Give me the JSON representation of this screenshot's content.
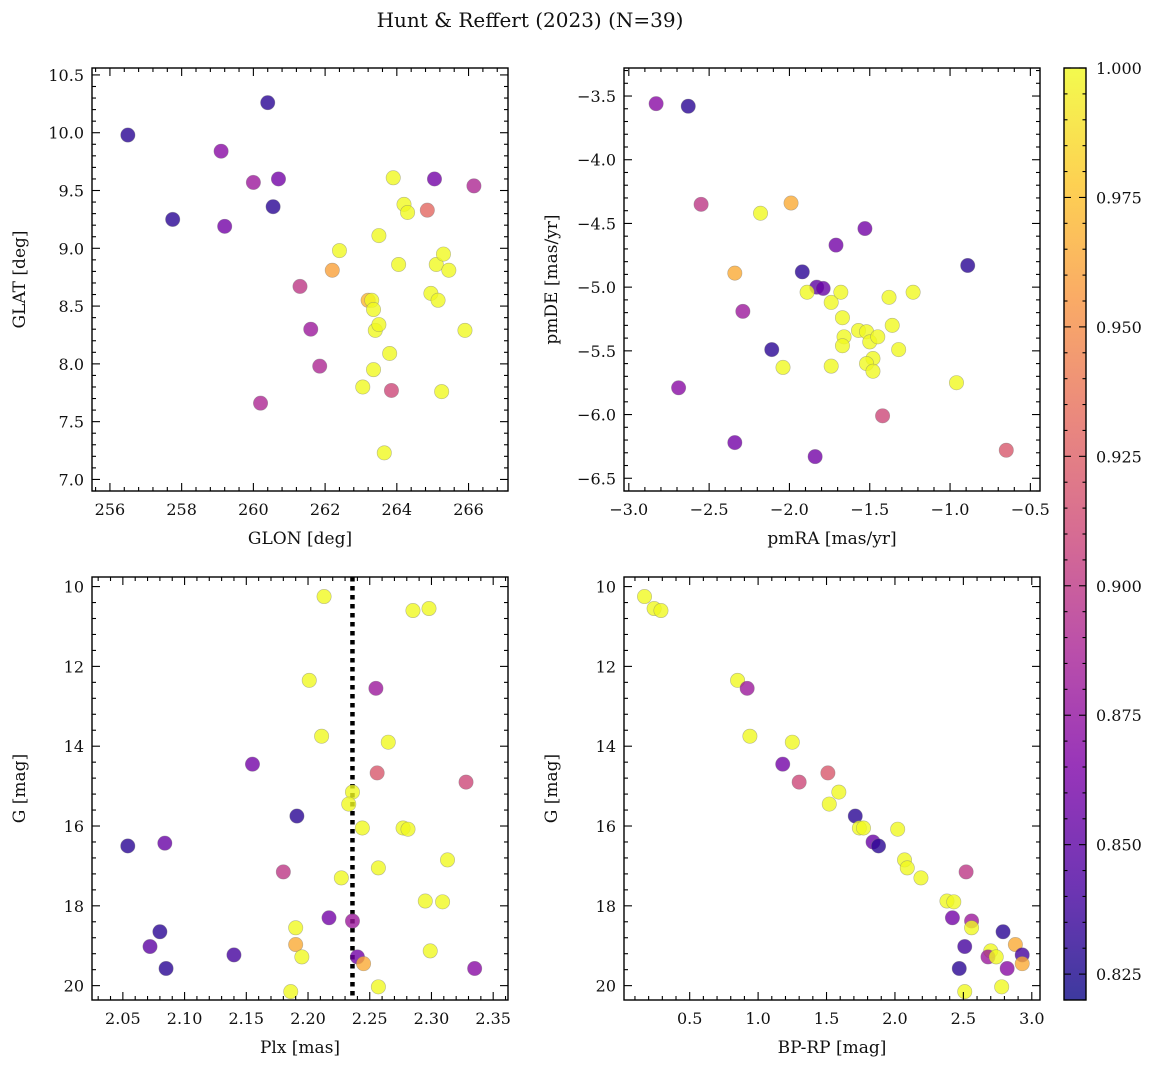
{
  "figure": {
    "title": "Hunt & Reffert (2023) (N=39)",
    "colorbar": {
      "cmap": "plasma",
      "range": [
        0.82,
        1.0
      ],
      "ticks": [
        0.825,
        0.85,
        0.875,
        0.9,
        0.925,
        0.95,
        0.975,
        1.0
      ],
      "tick_labels": [
        "0.825",
        "0.850",
        "0.875",
        "0.900",
        "0.925",
        "0.950",
        "0.975",
        "1.000"
      ]
    }
  },
  "chart_data": [
    {
      "type": "scatter",
      "xlabel": "GLON [deg]",
      "ylabel": "GLAT [deg]",
      "xlim": [
        255.5,
        267.1
      ],
      "ylim": [
        6.9,
        10.56
      ],
      "yinvert": false,
      "xticks": [
        256,
        258,
        260,
        262,
        264,
        266
      ],
      "xtick_labels": [
        "256",
        "258",
        "260",
        "262",
        "264",
        "266"
      ],
      "yticks": [
        7.0,
        7.5,
        8.0,
        8.5,
        9.0,
        9.5,
        10.0,
        10.5
      ],
      "ytick_labels": [
        "7.0",
        "7.5",
        "8.0",
        "8.5",
        "9.0",
        "9.5",
        "10.0",
        "10.5"
      ],
      "points": [
        {
          "x": 256.5,
          "y": 9.98,
          "c": 0.83
        },
        {
          "x": 257.75,
          "y": 9.25,
          "c": 0.83
        },
        {
          "x": 259.1,
          "y": 9.84,
          "c": 0.87
        },
        {
          "x": 259.2,
          "y": 9.19,
          "c": 0.86
        },
        {
          "x": 260.0,
          "y": 9.57,
          "c": 0.88
        },
        {
          "x": 260.2,
          "y": 7.66,
          "c": 0.89
        },
        {
          "x": 260.4,
          "y": 10.26,
          "c": 0.83
        },
        {
          "x": 260.55,
          "y": 9.36,
          "c": 0.83
        },
        {
          "x": 260.7,
          "y": 9.6,
          "c": 0.86
        },
        {
          "x": 261.3,
          "y": 8.67,
          "c": 0.9
        },
        {
          "x": 261.6,
          "y": 8.3,
          "c": 0.88
        },
        {
          "x": 261.85,
          "y": 7.98,
          "c": 0.89
        },
        {
          "x": 262.2,
          "y": 8.81,
          "c": 0.96
        },
        {
          "x": 262.4,
          "y": 8.98,
          "c": 1.0
        },
        {
          "x": 263.05,
          "y": 7.8,
          "c": 1.0
        },
        {
          "x": 263.2,
          "y": 8.55,
          "c": 0.97
        },
        {
          "x": 263.3,
          "y": 8.55,
          "c": 1.0
        },
        {
          "x": 263.35,
          "y": 8.47,
          "c": 1.0
        },
        {
          "x": 263.35,
          "y": 7.95,
          "c": 1.0
        },
        {
          "x": 263.4,
          "y": 8.29,
          "c": 1.0
        },
        {
          "x": 263.5,
          "y": 8.34,
          "c": 1.0
        },
        {
          "x": 263.5,
          "y": 9.11,
          "c": 1.0
        },
        {
          "x": 263.65,
          "y": 7.23,
          "c": 1.0
        },
        {
          "x": 263.8,
          "y": 8.09,
          "c": 1.0
        },
        {
          "x": 263.85,
          "y": 7.77,
          "c": 0.91
        },
        {
          "x": 263.9,
          "y": 9.61,
          "c": 1.0
        },
        {
          "x": 264.05,
          "y": 8.86,
          "c": 1.0
        },
        {
          "x": 264.2,
          "y": 9.38,
          "c": 1.0
        },
        {
          "x": 264.3,
          "y": 9.31,
          "c": 1.0
        },
        {
          "x": 264.85,
          "y": 9.33,
          "c": 0.93
        },
        {
          "x": 264.95,
          "y": 8.61,
          "c": 1.0
        },
        {
          "x": 265.05,
          "y": 9.6,
          "c": 0.86
        },
        {
          "x": 265.1,
          "y": 8.86,
          "c": 1.0
        },
        {
          "x": 265.15,
          "y": 8.55,
          "c": 1.0
        },
        {
          "x": 265.25,
          "y": 7.76,
          "c": 1.0
        },
        {
          "x": 265.3,
          "y": 8.95,
          "c": 1.0
        },
        {
          "x": 265.45,
          "y": 8.81,
          "c": 1.0
        },
        {
          "x": 265.9,
          "y": 8.29,
          "c": 1.0
        },
        {
          "x": 266.15,
          "y": 9.54,
          "c": 0.89
        }
      ]
    },
    {
      "type": "scatter",
      "xlabel": "pmRA [mas/yr]",
      "ylabel": "pmDE [mas/yr]",
      "xlim": [
        -3.03,
        -0.44
      ],
      "ylim": [
        -6.6,
        -3.28
      ],
      "yinvert": false,
      "xticks": [
        -3.0,
        -2.5,
        -2.0,
        -1.5,
        -1.0,
        -0.5
      ],
      "xtick_labels": [
        "−3.0",
        "−2.5",
        "−2.0",
        "−1.5",
        "−1.0",
        "−0.5"
      ],
      "yticks": [
        -6.5,
        -6.0,
        -5.5,
        -5.0,
        -4.5,
        -4.0,
        -3.5
      ],
      "ytick_labels": [
        "−6.5",
        "−6.0",
        "−5.5",
        "−5.0",
        "−4.5",
        "−4.0",
        "−3.5"
      ],
      "points": [
        {
          "x": -2.83,
          "y": -3.56,
          "c": 0.87
        },
        {
          "x": -2.63,
          "y": -3.58,
          "c": 0.83
        },
        {
          "x": -2.55,
          "y": -4.35,
          "c": 0.9
        },
        {
          "x": -2.18,
          "y": -4.42,
          "c": 1.0
        },
        {
          "x": -1.99,
          "y": -4.34,
          "c": 0.965
        },
        {
          "x": -2.34,
          "y": -4.89,
          "c": 0.965
        },
        {
          "x": -1.71,
          "y": -4.67,
          "c": 0.86
        },
        {
          "x": -1.53,
          "y": -4.54,
          "c": 0.86
        },
        {
          "x": -0.89,
          "y": -4.83,
          "c": 0.83
        },
        {
          "x": -1.92,
          "y": -4.88,
          "c": 0.83
        },
        {
          "x": -1.83,
          "y": -5.0,
          "c": 0.85
        },
        {
          "x": -1.79,
          "y": -5.01,
          "c": 0.855
        },
        {
          "x": -2.29,
          "y": -5.19,
          "c": 0.88
        },
        {
          "x": -1.89,
          "y": -5.04,
          "c": 1.0
        },
        {
          "x": -1.74,
          "y": -5.12,
          "c": 1.0
        },
        {
          "x": -1.68,
          "y": -5.04,
          "c": 1.0
        },
        {
          "x": -1.67,
          "y": -5.24,
          "c": 1.0
        },
        {
          "x": -1.66,
          "y": -5.39,
          "c": 1.0
        },
        {
          "x": -1.67,
          "y": -5.46,
          "c": 1.0
        },
        {
          "x": -1.57,
          "y": -5.34,
          "c": 1.0
        },
        {
          "x": -1.52,
          "y": -5.35,
          "c": 1.0
        },
        {
          "x": -1.5,
          "y": -5.43,
          "c": 1.0
        },
        {
          "x": -1.45,
          "y": -5.39,
          "c": 1.0
        },
        {
          "x": -1.38,
          "y": -5.08,
          "c": 1.0
        },
        {
          "x": -1.36,
          "y": -5.3,
          "c": 1.0
        },
        {
          "x": -1.32,
          "y": -5.49,
          "c": 1.0
        },
        {
          "x": -1.23,
          "y": -5.04,
          "c": 1.0
        },
        {
          "x": -1.48,
          "y": -5.56,
          "c": 1.0
        },
        {
          "x": -1.52,
          "y": -5.6,
          "c": 1.0
        },
        {
          "x": -1.48,
          "y": -5.66,
          "c": 1.0
        },
        {
          "x": -1.74,
          "y": -5.62,
          "c": 1.0
        },
        {
          "x": -2.04,
          "y": -5.63,
          "c": 1.0
        },
        {
          "x": -2.11,
          "y": -5.49,
          "c": 0.83
        },
        {
          "x": -0.96,
          "y": -5.75,
          "c": 1.0
        },
        {
          "x": -2.69,
          "y": -5.79,
          "c": 0.87
        },
        {
          "x": -1.42,
          "y": -6.01,
          "c": 0.91
        },
        {
          "x": -2.34,
          "y": -6.22,
          "c": 0.86
        },
        {
          "x": -1.84,
          "y": -6.33,
          "c": 0.86
        },
        {
          "x": -0.65,
          "y": -6.28,
          "c": 0.92
        }
      ]
    },
    {
      "type": "scatter",
      "xlabel": "Plx [mas]",
      "ylabel": "G [mag]",
      "xlim": [
        2.025,
        2.362
      ],
      "ylim": [
        9.76,
        20.36
      ],
      "yinvert": true,
      "vline": {
        "x": 2.236,
        "style": "dotted"
      },
      "xticks": [
        2.05,
        2.1,
        2.15,
        2.2,
        2.25,
        2.3,
        2.35
      ],
      "xtick_labels": [
        "2.05",
        "2.10",
        "2.15",
        "2.20",
        "2.25",
        "2.30",
        "2.35"
      ],
      "yticks": [
        10,
        12,
        14,
        16,
        18,
        20
      ],
      "ytick_labels": [
        "10",
        "12",
        "14",
        "16",
        "18",
        "20"
      ],
      "points": [
        {
          "x": 2.213,
          "y": 10.25,
          "c": 1.0
        },
        {
          "x": 2.285,
          "y": 10.6,
          "c": 1.0
        },
        {
          "x": 2.298,
          "y": 10.55,
          "c": 1.0
        },
        {
          "x": 2.201,
          "y": 12.35,
          "c": 1.0
        },
        {
          "x": 2.255,
          "y": 12.55,
          "c": 0.88
        },
        {
          "x": 2.211,
          "y": 13.75,
          "c": 1.0
        },
        {
          "x": 2.265,
          "y": 13.9,
          "c": 1.0
        },
        {
          "x": 2.155,
          "y": 14.45,
          "c": 0.86
        },
        {
          "x": 2.256,
          "y": 14.67,
          "c": 0.92
        },
        {
          "x": 2.328,
          "y": 14.9,
          "c": 0.91
        },
        {
          "x": 2.236,
          "y": 15.15,
          "c": 1.0
        },
        {
          "x": 2.233,
          "y": 15.45,
          "c": 1.0
        },
        {
          "x": 2.191,
          "y": 15.75,
          "c": 0.83
        },
        {
          "x": 2.054,
          "y": 16.5,
          "c": 0.83
        },
        {
          "x": 2.084,
          "y": 16.43,
          "c": 0.855
        },
        {
          "x": 2.244,
          "y": 16.05,
          "c": 1.0
        },
        {
          "x": 2.277,
          "y": 16.05,
          "c": 1.0
        },
        {
          "x": 2.281,
          "y": 16.08,
          "c": 1.0
        },
        {
          "x": 2.257,
          "y": 17.05,
          "c": 1.0
        },
        {
          "x": 2.313,
          "y": 16.85,
          "c": 1.0
        },
        {
          "x": 2.18,
          "y": 17.15,
          "c": 0.9
        },
        {
          "x": 2.227,
          "y": 17.3,
          "c": 1.0
        },
        {
          "x": 2.295,
          "y": 17.88,
          "c": 1.0
        },
        {
          "x": 2.309,
          "y": 17.9,
          "c": 1.0
        },
        {
          "x": 2.217,
          "y": 18.3,
          "c": 0.86
        },
        {
          "x": 2.236,
          "y": 18.38,
          "c": 0.88
        },
        {
          "x": 2.19,
          "y": 18.55,
          "c": 1.0
        },
        {
          "x": 2.08,
          "y": 18.65,
          "c": 0.83
        },
        {
          "x": 2.072,
          "y": 19.02,
          "c": 0.85
        },
        {
          "x": 2.19,
          "y": 18.97,
          "c": 0.965
        },
        {
          "x": 2.14,
          "y": 19.23,
          "c": 0.84
        },
        {
          "x": 2.195,
          "y": 19.28,
          "c": 1.0
        },
        {
          "x": 2.24,
          "y": 19.28,
          "c": 0.86
        },
        {
          "x": 2.245,
          "y": 19.45,
          "c": 0.965
        },
        {
          "x": 2.299,
          "y": 19.13,
          "c": 1.0
        },
        {
          "x": 2.085,
          "y": 19.57,
          "c": 0.83
        },
        {
          "x": 2.335,
          "y": 19.57,
          "c": 0.87
        },
        {
          "x": 2.186,
          "y": 20.15,
          "c": 1.0
        },
        {
          "x": 2.257,
          "y": 20.03,
          "c": 1.0
        }
      ]
    },
    {
      "type": "scatter",
      "xlabel": "BP-RP [mag]",
      "ylabel": "G [mag]",
      "xlim": [
        0.02,
        3.06
      ],
      "ylim": [
        9.76,
        20.36
      ],
      "yinvert": true,
      "xticks": [
        0.5,
        1.0,
        1.5,
        2.0,
        2.5,
        3.0
      ],
      "xtick_labels": [
        "0.5",
        "1.0",
        "1.5",
        "2.0",
        "2.5",
        "3.0"
      ],
      "yticks": [
        10,
        12,
        14,
        16,
        18,
        20
      ],
      "ytick_labels": [
        "10",
        "12",
        "14",
        "16",
        "18",
        "20"
      ],
      "points": [
        {
          "x": 0.17,
          "y": 10.25,
          "c": 1.0
        },
        {
          "x": 0.24,
          "y": 10.55,
          "c": 1.0
        },
        {
          "x": 0.29,
          "y": 10.6,
          "c": 1.0
        },
        {
          "x": 0.85,
          "y": 12.35,
          "c": 1.0
        },
        {
          "x": 0.92,
          "y": 12.55,
          "c": 0.88
        },
        {
          "x": 0.94,
          "y": 13.75,
          "c": 1.0
        },
        {
          "x": 1.25,
          "y": 13.9,
          "c": 1.0
        },
        {
          "x": 1.18,
          "y": 14.45,
          "c": 0.86
        },
        {
          "x": 1.51,
          "y": 14.67,
          "c": 0.92
        },
        {
          "x": 1.3,
          "y": 14.9,
          "c": 0.91
        },
        {
          "x": 1.59,
          "y": 15.15,
          "c": 1.0
        },
        {
          "x": 1.52,
          "y": 15.45,
          "c": 1.0
        },
        {
          "x": 1.71,
          "y": 15.75,
          "c": 0.83
        },
        {
          "x": 1.74,
          "y": 16.05,
          "c": 1.0
        },
        {
          "x": 1.77,
          "y": 16.05,
          "c": 1.0
        },
        {
          "x": 1.84,
          "y": 16.4,
          "c": 0.855
        },
        {
          "x": 1.88,
          "y": 16.5,
          "c": 0.83
        },
        {
          "x": 2.02,
          "y": 16.08,
          "c": 1.0
        },
        {
          "x": 2.07,
          "y": 16.85,
          "c": 1.0
        },
        {
          "x": 2.09,
          "y": 17.05,
          "c": 1.0
        },
        {
          "x": 2.19,
          "y": 17.3,
          "c": 1.0
        },
        {
          "x": 2.52,
          "y": 17.15,
          "c": 0.9
        },
        {
          "x": 2.38,
          "y": 17.88,
          "c": 1.0
        },
        {
          "x": 2.43,
          "y": 17.9,
          "c": 1.0
        },
        {
          "x": 2.42,
          "y": 18.3,
          "c": 0.86
        },
        {
          "x": 2.56,
          "y": 18.38,
          "c": 0.88
        },
        {
          "x": 2.56,
          "y": 18.55,
          "c": 1.0
        },
        {
          "x": 2.79,
          "y": 18.65,
          "c": 0.83
        },
        {
          "x": 2.51,
          "y": 19.02,
          "c": 0.84
        },
        {
          "x": 2.88,
          "y": 18.97,
          "c": 0.965
        },
        {
          "x": 2.7,
          "y": 19.13,
          "c": 1.0
        },
        {
          "x": 2.68,
          "y": 19.28,
          "c": 0.88
        },
        {
          "x": 2.74,
          "y": 19.28,
          "c": 1.0
        },
        {
          "x": 2.93,
          "y": 19.23,
          "c": 0.84
        },
        {
          "x": 2.93,
          "y": 19.45,
          "c": 0.965
        },
        {
          "x": 2.47,
          "y": 19.57,
          "c": 0.83
        },
        {
          "x": 2.82,
          "y": 19.57,
          "c": 0.87
        },
        {
          "x": 2.51,
          "y": 20.15,
          "c": 1.0
        },
        {
          "x": 2.78,
          "y": 20.03,
          "c": 1.0
        }
      ]
    }
  ]
}
